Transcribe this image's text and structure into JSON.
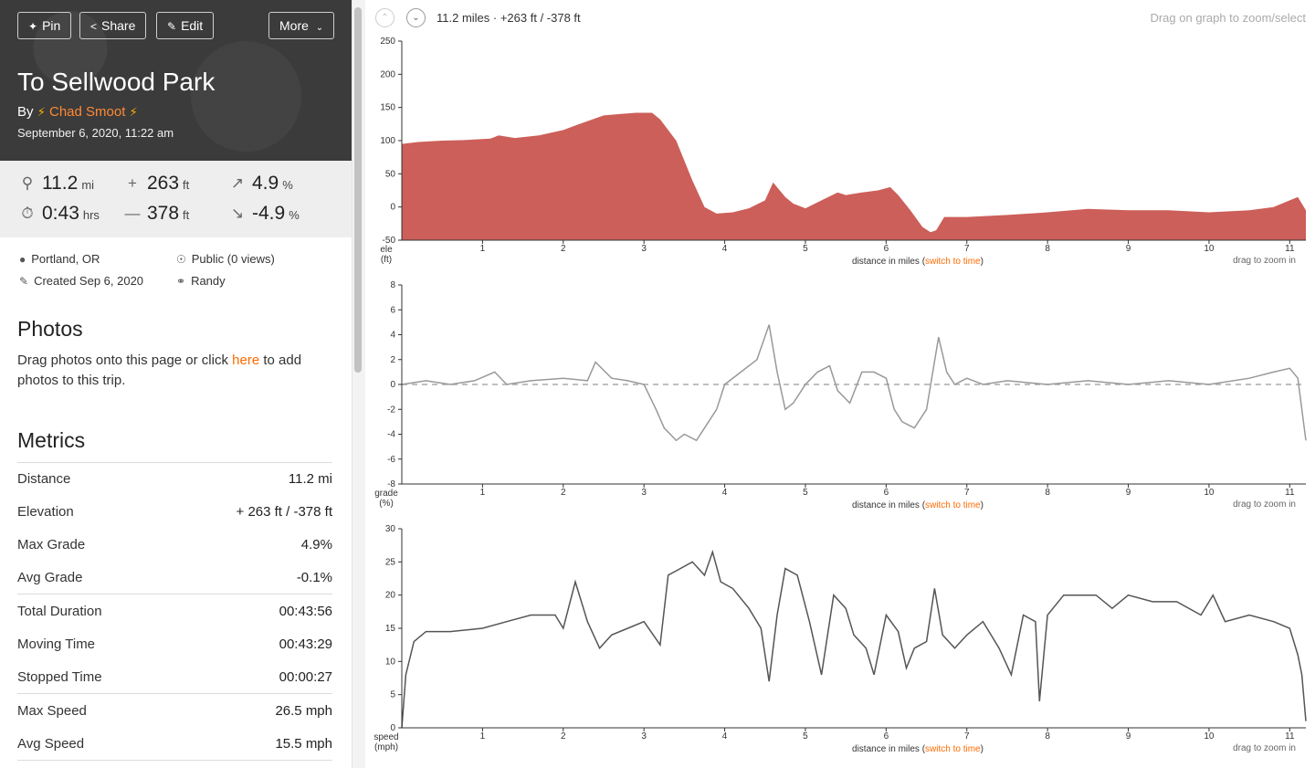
{
  "header": {
    "pin": "Pin",
    "share": "Share",
    "edit": "Edit",
    "more": "More",
    "title": "To Sellwood Park",
    "by": "By",
    "author": "Chad Smoot",
    "date": "September 6, 2020, 11:22 am"
  },
  "stats": {
    "distance": {
      "value": "11.2",
      "unit": "mi"
    },
    "time": {
      "value": "0:43",
      "unit": "hrs"
    },
    "gain": {
      "value": "263",
      "unit": "ft"
    },
    "loss": {
      "value": "378",
      "unit": "ft"
    },
    "max_grade": {
      "value": "4.9",
      "unit": "%"
    },
    "min_grade": {
      "value": "-4.9",
      "unit": "%"
    }
  },
  "meta": {
    "location": "Portland, OR",
    "visibility": "Public (0 views)",
    "created": "Created Sep 6, 2020",
    "bike": "Randy"
  },
  "photos": {
    "heading": "Photos",
    "text_before": "Drag photos onto this page or click ",
    "link": "here",
    "text_after": " to add photos to this trip."
  },
  "metrics": {
    "heading": "Metrics",
    "rows": [
      {
        "label": "Distance",
        "value": "11.2 mi"
      },
      {
        "label": "Elevation",
        "value": "+ 263 ft / -378 ft"
      },
      {
        "label": "Max Grade",
        "value": "4.9%"
      },
      {
        "label": "Avg Grade",
        "value": "-0.1%"
      },
      {
        "label": "Total Duration",
        "value": "00:43:56"
      },
      {
        "label": "Moving Time",
        "value": "00:43:29"
      },
      {
        "label": "Stopped Time",
        "value": "00:00:27"
      },
      {
        "label": "Max Speed",
        "value": "26.5 mph"
      },
      {
        "label": "Avg Speed",
        "value": "15.5 mph"
      }
    ]
  },
  "graph_header": {
    "summary": "11.2 miles · +263 ft / -378 ft",
    "hint": "Drag on graph to zoom/select"
  },
  "colors": {
    "accent": "#ff6a00",
    "elevation_fill": "#cc5f59",
    "line": "#555555",
    "hero_bg": "#3b3b3b"
  },
  "chart_data": [
    {
      "type": "area",
      "ylabel": "ele\n(ft)",
      "xlabel_text": "distance in miles",
      "switch_link": "switch to time",
      "zoom_hint": "drag to zoom in",
      "ylim": [
        -50,
        250
      ],
      "yticks": [
        -50,
        0,
        50,
        100,
        150,
        200,
        250
      ],
      "xlim": [
        0,
        11.2
      ],
      "xticks": [
        1,
        2,
        3,
        4,
        5,
        6,
        7,
        8,
        9,
        10,
        11
      ],
      "x": [
        0,
        0.2,
        0.5,
        0.8,
        1.1,
        1.2,
        1.4,
        1.7,
        2.0,
        2.2,
        2.5,
        2.7,
        2.9,
        3.1,
        3.2,
        3.4,
        3.6,
        3.75,
        3.9,
        4.1,
        4.3,
        4.5,
        4.6,
        4.75,
        4.85,
        5.0,
        5.2,
        5.4,
        5.5,
        5.7,
        5.9,
        6.05,
        6.15,
        6.3,
        6.45,
        6.55,
        6.62,
        6.72,
        6.8,
        7.0,
        7.5,
        8.0,
        8.5,
        9.0,
        9.5,
        10.0,
        10.5,
        10.8,
        11.0,
        11.1,
        11.2
      ],
      "y": [
        95,
        98,
        100,
        101,
        103,
        108,
        104,
        108,
        116,
        125,
        138,
        140,
        142,
        142,
        132,
        100,
        40,
        0,
        -10,
        -8,
        -2,
        10,
        37,
        15,
        5,
        -2,
        10,
        22,
        18,
        22,
        25,
        30,
        18,
        -5,
        -30,
        -38,
        -35,
        -15,
        -15,
        -15,
        -12,
        -8,
        -3,
        -5,
        -5,
        -8,
        -5,
        0,
        10,
        15,
        -5
      ]
    },
    {
      "type": "line",
      "ylabel": "grade\n(%)",
      "xlabel_text": "distance in miles",
      "switch_link": "switch to time",
      "zoom_hint": "drag to zoom in",
      "ylim": [
        -8,
        8
      ],
      "yticks": [
        -8,
        -6,
        -4,
        -2,
        0,
        2,
        4,
        6,
        8
      ],
      "xlim": [
        0,
        11.2
      ],
      "xticks": [
        1,
        2,
        3,
        4,
        5,
        6,
        7,
        8,
        9,
        10,
        11
      ],
      "reference_line": 0,
      "x": [
        0,
        0.3,
        0.6,
        0.9,
        1.15,
        1.3,
        1.6,
        2.0,
        2.3,
        2.4,
        2.6,
        2.8,
        3.0,
        3.15,
        3.25,
        3.4,
        3.5,
        3.65,
        3.75,
        3.9,
        4.0,
        4.2,
        4.4,
        4.55,
        4.65,
        4.75,
        4.85,
        5.0,
        5.15,
        5.3,
        5.4,
        5.55,
        5.7,
        5.85,
        6.0,
        6.1,
        6.2,
        6.35,
        6.5,
        6.65,
        6.75,
        6.85,
        7.0,
        7.2,
        7.5,
        8.0,
        8.5,
        9.0,
        9.5,
        10.0,
        10.5,
        10.8,
        11.0,
        11.1,
        11.2
      ],
      "y": [
        0,
        0.3,
        0,
        0.3,
        1.0,
        0,
        0.3,
        0.5,
        0.3,
        1.8,
        0.5,
        0.3,
        0,
        -2.0,
        -3.5,
        -4.5,
        -4.0,
        -4.5,
        -3.5,
        -2.0,
        0,
        1.0,
        2.0,
        4.8,
        1.0,
        -2.0,
        -1.5,
        0,
        1.0,
        1.5,
        -0.5,
        -1.5,
        1.0,
        1.0,
        0.5,
        -2.0,
        -3.0,
        -3.5,
        -2.0,
        3.8,
        1.0,
        0,
        0.5,
        0,
        0.3,
        0,
        0.3,
        0,
        0.3,
        0,
        0.5,
        1.0,
        1.3,
        0.5,
        -4.5
      ]
    },
    {
      "type": "line",
      "ylabel": "speed\n(mph)",
      "xlabel_text": "distance in miles",
      "switch_link": "switch to time",
      "zoom_hint": "drag to zoom in",
      "ylim": [
        0,
        30
      ],
      "yticks": [
        0,
        5,
        10,
        15,
        20,
        25,
        30
      ],
      "xlim": [
        0,
        11.2
      ],
      "xticks": [
        1,
        2,
        3,
        4,
        5,
        6,
        7,
        8,
        9,
        10,
        11
      ],
      "x": [
        0,
        0.05,
        0.15,
        0.3,
        0.6,
        1.0,
        1.3,
        1.6,
        1.9,
        2.0,
        2.15,
        2.3,
        2.45,
        2.6,
        2.8,
        3.0,
        3.2,
        3.3,
        3.45,
        3.6,
        3.75,
        3.85,
        3.95,
        4.1,
        4.3,
        4.45,
        4.55,
        4.65,
        4.75,
        4.9,
        5.05,
        5.2,
        5.35,
        5.5,
        5.6,
        5.75,
        5.85,
        6.0,
        6.15,
        6.25,
        6.35,
        6.5,
        6.6,
        6.7,
        6.85,
        7.0,
        7.2,
        7.4,
        7.55,
        7.7,
        7.85,
        7.9,
        8.0,
        8.2,
        8.4,
        8.6,
        8.8,
        9.0,
        9.3,
        9.6,
        9.9,
        10.05,
        10.2,
        10.5,
        10.8,
        11.0,
        11.1,
        11.15,
        11.2
      ],
      "y": [
        0,
        8,
        13,
        14.5,
        14.5,
        15,
        16,
        17,
        17,
        15,
        22,
        16,
        12,
        14,
        15,
        16,
        12.5,
        23,
        24,
        25,
        23,
        26.5,
        22,
        21,
        18,
        15,
        7,
        17,
        24,
        23,
        16,
        8,
        20,
        18,
        14,
        12,
        8,
        17,
        14.5,
        9,
        12,
        13,
        21,
        14,
        12,
        14,
        16,
        12,
        8,
        17,
        16,
        4,
        17,
        20,
        20,
        20,
        18,
        20,
        19,
        19,
        17,
        20,
        16,
        17,
        16,
        15,
        11,
        8,
        1
      ]
    }
  ]
}
